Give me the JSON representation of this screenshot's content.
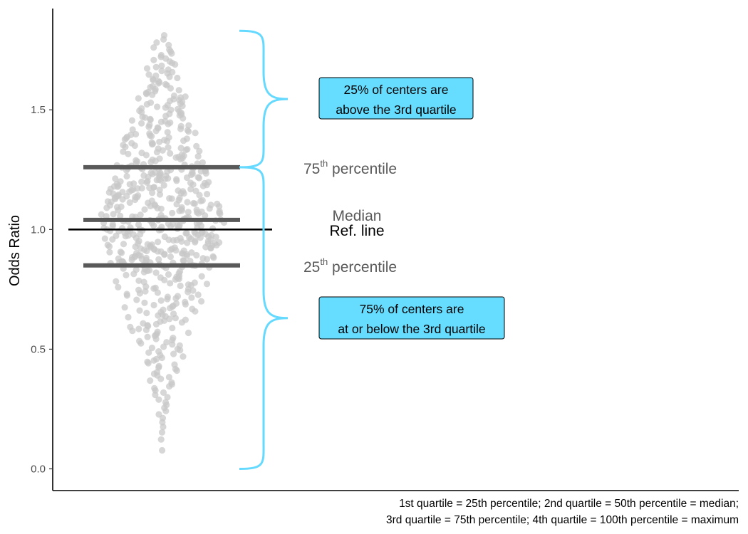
{
  "chart_data": {
    "type": "scatter",
    "subtype": "beeswarm",
    "ylabel": "Odds Ratio",
    "ylim": [
      -0.09,
      1.93
    ],
    "y_ticks": [
      0.0,
      0.5,
      1.0,
      1.5
    ],
    "y_tick_labels": [
      "0.0",
      "0.5",
      "1.0",
      "1.5"
    ],
    "grid": false,
    "point_color": "#c8c8c8",
    "n_points": 600,
    "min": 0.0,
    "max": 1.83,
    "quartiles": {
      "q1": 0.85,
      "median": 1.04,
      "q3": 1.26
    },
    "quartile_color": "#595959",
    "reference_line": {
      "y": 1.0,
      "label": "Ref. line",
      "color": "#000000"
    },
    "labels": {
      "q3_number": "75",
      "q1_number": "25",
      "ordinal_suffix": "th",
      "percentile_word": "percentile",
      "median": "Median"
    },
    "brace_color": "#66d9ff",
    "annotations": [
      {
        "id": "upper",
        "lines": [
          "25% of centers are",
          "above the 3rd quartile"
        ],
        "fill": "#66ddff"
      },
      {
        "id": "lower",
        "lines": [
          "75% of centers are",
          "at or below the 3rd quartile"
        ],
        "fill": "#66ddff"
      }
    ],
    "caption": [
      "1st quartile = 25th percentile; 2nd quartile = 50th percentile = median;",
      "3rd quartile = 75th percentile; 4th quartile = 100th percentile = maximum"
    ]
  }
}
